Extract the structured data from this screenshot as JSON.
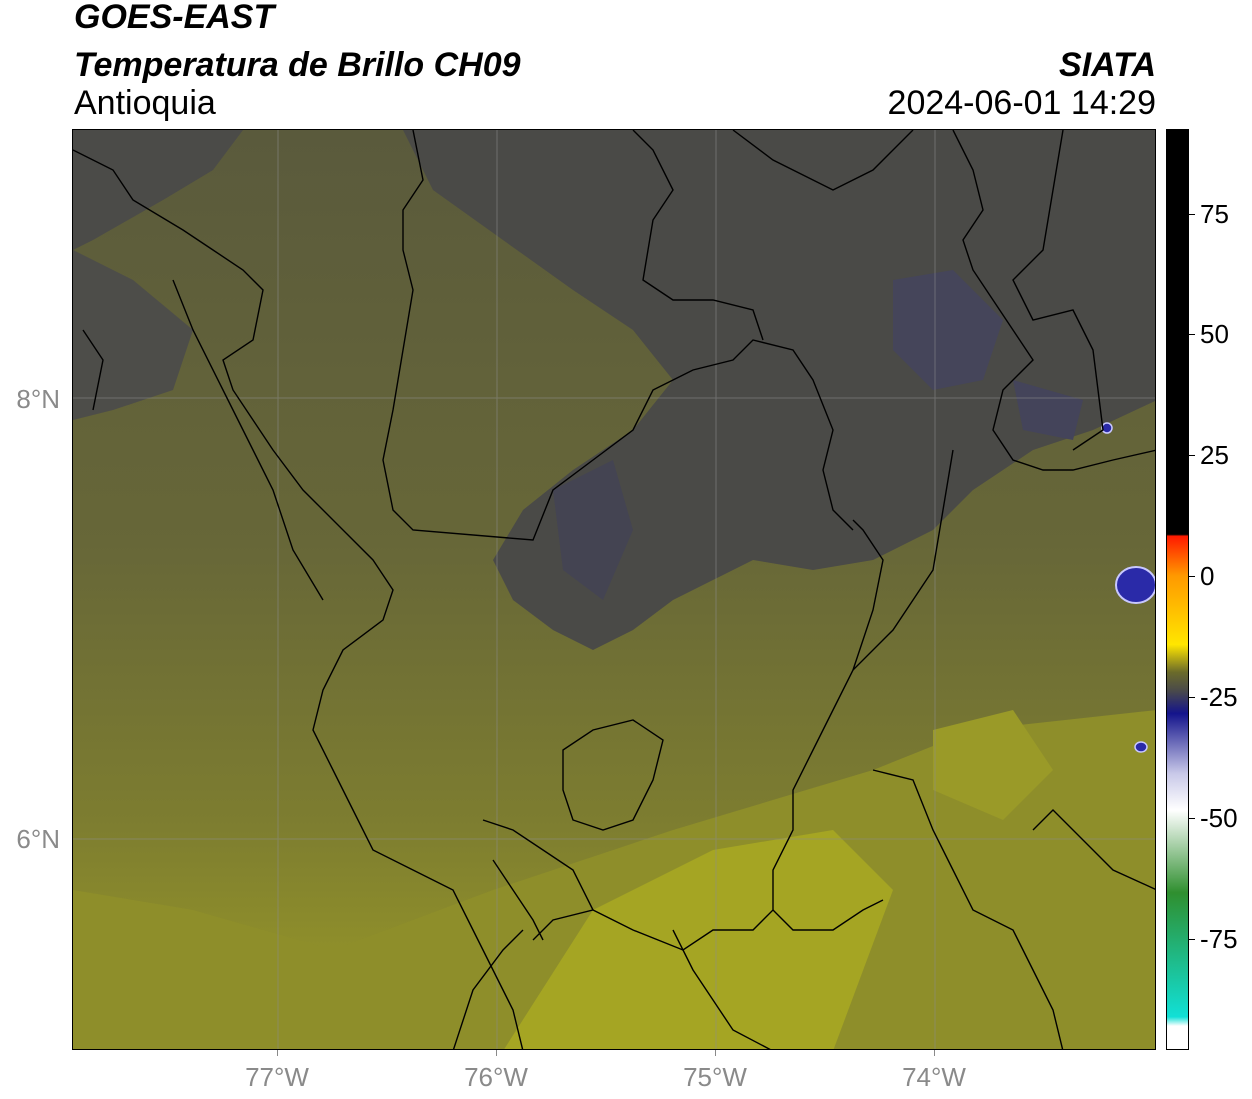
{
  "header": {
    "satellite": "GOES-EAST",
    "product": "Temperatura de Brillo CH09",
    "region": "Antioquia",
    "agency": "SIATA",
    "datetime": "2024-06-01 14:29"
  },
  "map": {
    "lat_labels": [
      "8°N",
      "6°N"
    ],
    "lon_labels": [
      "77°W",
      "76°W",
      "75°W",
      "74°W"
    ]
  },
  "colorbar": {
    "labels": [
      "75",
      "50",
      "25",
      "0",
      "-25",
      "-50",
      "-75"
    ],
    "colors": {
      "top": "#000000",
      "red": "#ff1a00",
      "orange": "#ff9900",
      "yellow": "#ffe600",
      "olive": "#6b6b2a",
      "dark_gray": "#4a4a4a",
      "navy": "#14148c",
      "light_blue": "#c8c8e8",
      "white": "#ffffff",
      "green": "#2f8f2f",
      "cyan": "#11e0d6"
    }
  }
}
